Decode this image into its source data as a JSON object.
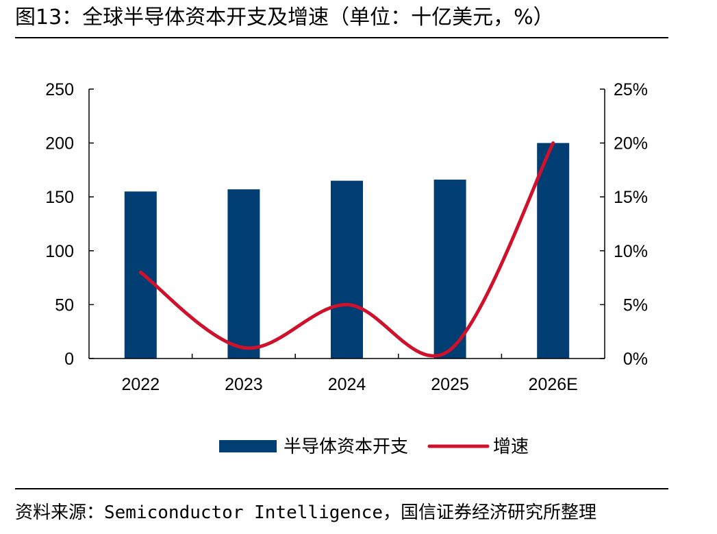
{
  "figure": {
    "title": "图13：全球半导体资本开支及增速（单位：十亿美元，%）",
    "source": "资料来源：Semiconductor Intelligence，国信证券经济研究所整理"
  },
  "chart_data": {
    "type": "bar",
    "categories": [
      "2022",
      "2023",
      "2024",
      "2025",
      "2026E"
    ],
    "series": [
      {
        "name": "半导体资本开支",
        "type": "bar",
        "axis": "left",
        "color": "#003e74",
        "values": [
          155,
          157,
          165,
          166,
          200
        ]
      },
      {
        "name": "增速",
        "type": "line",
        "axis": "right",
        "color": "#d0112b",
        "smooth": true,
        "values": [
          8,
          1,
          5,
          0.8,
          20
        ]
      }
    ],
    "y_left": {
      "range": [
        0,
        250
      ],
      "ticks": [
        "0",
        "50",
        "100",
        "150",
        "200",
        "250"
      ]
    },
    "y_right": {
      "range": [
        0,
        25
      ],
      "ticks": [
        "0%",
        "5%",
        "10%",
        "15%",
        "20%",
        "25%"
      ]
    },
    "grid": false,
    "legend": "bottom-center"
  }
}
